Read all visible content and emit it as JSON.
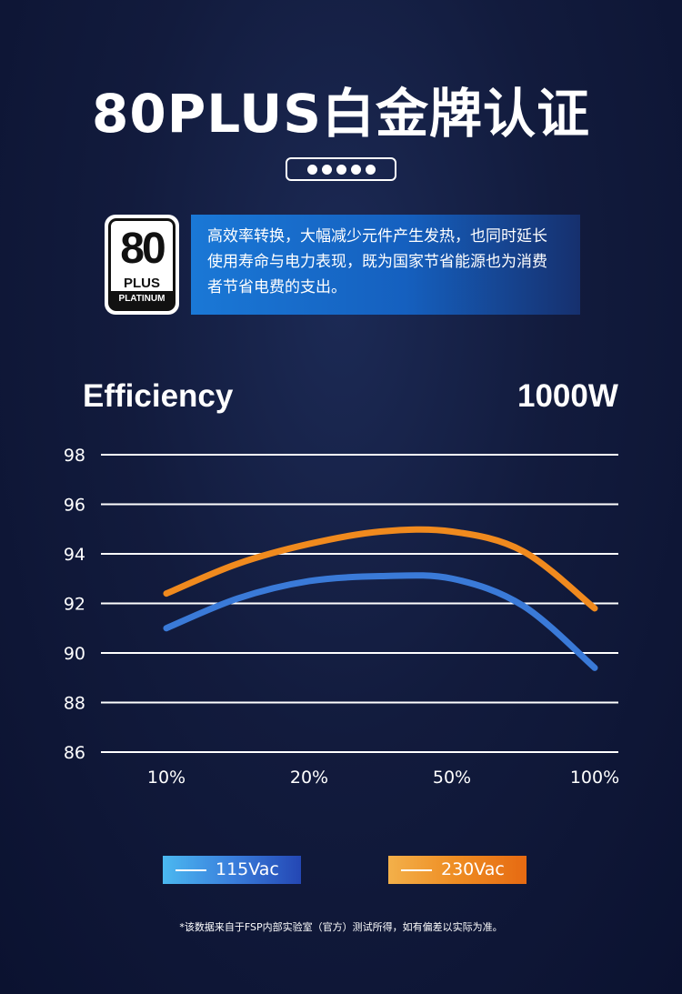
{
  "header": {
    "title": "80PLUS白金牌认证"
  },
  "badge": {
    "number": "80",
    "plus": "PLUS",
    "level": "PLATINUM"
  },
  "description": {
    "line1": "高效率转换，大幅减少元件产生发热，也同时延长",
    "line2": "使用寿命与电力表现，既为国家节省能源也为消费",
    "line3": "者节省电费的支出。"
  },
  "chart_label_left": "Efficiency",
  "chart_label_right": "1000W",
  "chart_data": {
    "type": "line",
    "categories": [
      "10%",
      "20%",
      "50%",
      "100%"
    ],
    "ylim": [
      86,
      98
    ],
    "yticks": [
      98,
      96,
      94,
      92,
      90,
      88,
      86
    ],
    "grid": true,
    "legend_placement": "bottom",
    "series": [
      {
        "name": "115Vac",
        "color": "#3a7ad8",
        "points": [
          [
            0,
            91.0
          ],
          [
            0.5,
            92.2
          ],
          [
            1.0,
            92.9
          ],
          [
            1.5,
            93.1
          ],
          [
            2.0,
            93.0
          ],
          [
            2.5,
            91.9
          ],
          [
            3.0,
            89.4
          ]
        ]
      },
      {
        "name": "230Vac",
        "color": "#f08a1e",
        "points": [
          [
            0,
            92.4
          ],
          [
            0.5,
            93.6
          ],
          [
            1.0,
            94.4
          ],
          [
            1.5,
            94.9
          ],
          [
            2.0,
            94.9
          ],
          [
            2.5,
            94.1
          ],
          [
            3.0,
            91.8
          ]
        ]
      }
    ]
  },
  "legend": {
    "series1": "115Vac",
    "series2": "230Vac"
  },
  "footnote": "*该数据来自于FSP内部实验室（官方）测试所得，如有偏差以实际为准。"
}
